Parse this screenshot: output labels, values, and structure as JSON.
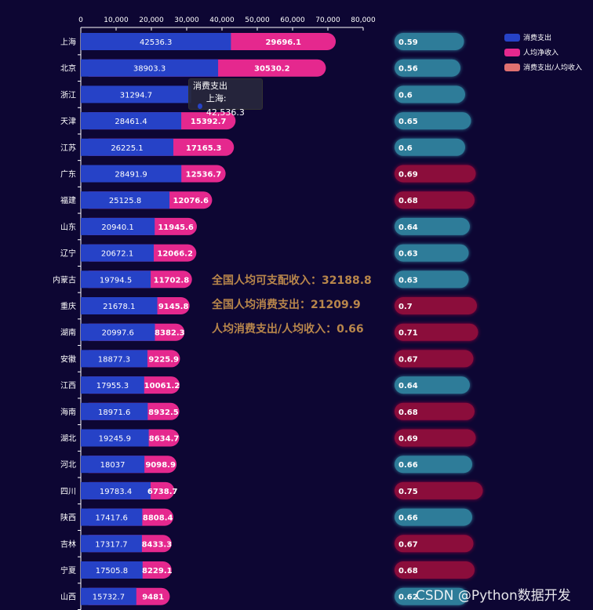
{
  "chart_data": {
    "type": "bar",
    "orientation": "horizontal",
    "stacked": true,
    "categories": [
      "上海",
      "北京",
      "浙江",
      "天津",
      "江苏",
      "广东",
      "福建",
      "山东",
      "辽宁",
      "内蒙古",
      "重庆",
      "湖南",
      "安徽",
      "江西",
      "海南",
      "湖北",
      "河北",
      "四川",
      "陕西",
      "吉林",
      "宁夏",
      "山西"
    ],
    "series": [
      {
        "name": "消费支出",
        "color": "#2642c7",
        "values": [
          42536.3,
          38903.3,
          31294.7,
          28461.4,
          26225.1,
          28491.9,
          25125.8,
          20940.1,
          20672.1,
          19794.5,
          21678.1,
          20997.6,
          18877.3,
          17955.3,
          18971.6,
          19245.9,
          18037,
          19783.4,
          17417.6,
          17317.7,
          17505.8,
          15732.7
        ]
      },
      {
        "name": "人均净收入",
        "color": "#e5288e",
        "values": [
          29696.1,
          30530.2,
          null,
          15392.7,
          17165.3,
          12536.7,
          12076.6,
          11945.6,
          12066.2,
          11702.8,
          9145.8,
          8382.3,
          9225.9,
          10061.2,
          8932.5,
          8634.7,
          9098.9,
          6738.7,
          8808.4,
          8433.3,
          8229.1,
          9481
        ]
      },
      {
        "name": "消费支出/人均收入",
        "color": "#e07070",
        "values": [
          0.59,
          0.56,
          0.6,
          0.65,
          0.6,
          0.69,
          0.68,
          0.64,
          0.63,
          0.63,
          0.7,
          0.71,
          0.67,
          0.64,
          0.68,
          0.69,
          0.66,
          0.75,
          0.66,
          0.67,
          0.68,
          0.62
        ]
      }
    ],
    "x_ticks": [
      "0",
      "10,000",
      "20,000",
      "30,000",
      "40,000",
      "50,000",
      "60,000",
      "70,000",
      "80,000"
    ],
    "xlim": [
      0,
      80000
    ],
    "ratio_colors": {
      "low": "#2e7b99",
      "high": "#8b0a3a"
    },
    "ratio_threshold": 0.66
  },
  "summary": {
    "line1": "全国人均可支配收入：32188.8",
    "line2": "全国人均消费支出：21209.9",
    "line3": "人均消费支出/人均收入：0.66"
  },
  "tooltip": {
    "series": "消费支出",
    "text": "上海: 42,536.3"
  },
  "watermark": "CSDN @Python数据开发"
}
